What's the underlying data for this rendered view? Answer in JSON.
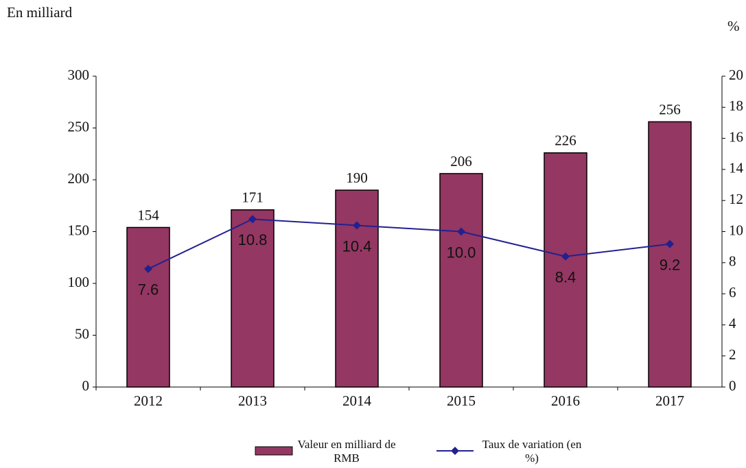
{
  "chart_data": {
    "type": "bar",
    "ylabel": "En milliard",
    "y2label": "%",
    "categories": [
      "2012",
      "2013",
      "2014",
      "2015",
      "2016",
      "2017"
    ],
    "series": [
      {
        "name": "Valeur en milliard de RMB",
        "type": "bar",
        "color": "#943762",
        "values": [
          154,
          171,
          190,
          206,
          226,
          256
        ]
      },
      {
        "name": "Taux de variation (en %)",
        "type": "line",
        "axis": "y2",
        "color": "#23208f",
        "values": [
          7.6,
          10.8,
          10.4,
          10.0,
          8.4,
          9.2
        ],
        "value_labels": [
          "7.6",
          "10.8",
          "10.4",
          "10.0",
          "8.4",
          "9.2"
        ]
      }
    ],
    "ylim": [
      0,
      300
    ],
    "yticks": [
      0,
      50,
      100,
      150,
      200,
      250,
      300
    ],
    "y2lim": [
      0,
      20
    ],
    "y2ticks": [
      0,
      2,
      4,
      6,
      8,
      10,
      12,
      14,
      16,
      18,
      20
    ],
    "grid": false,
    "legend": "bottom"
  }
}
